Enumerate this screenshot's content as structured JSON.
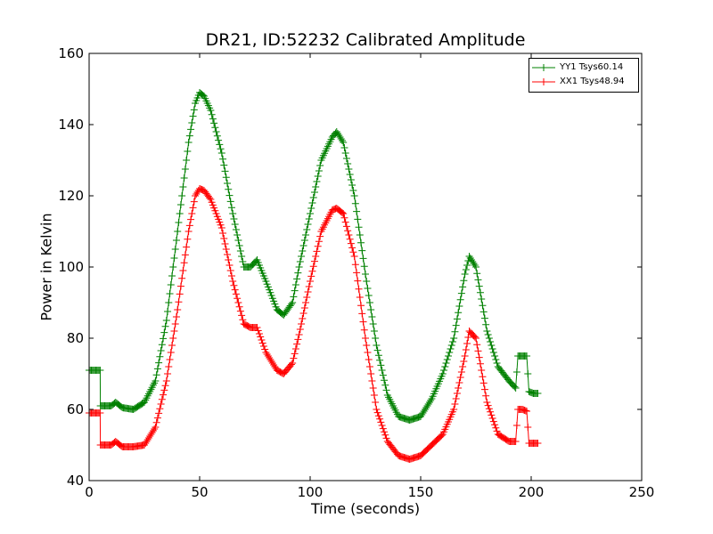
{
  "chart_data": {
    "type": "line",
    "title": "DR21, ID:52232 Calibrated Amplitude",
    "xlabel": "Time (seconds)",
    "ylabel": "Power in Kelvin",
    "xlim": [
      0,
      250
    ],
    "ylim": [
      40,
      160
    ],
    "xticks": [
      "0",
      "50",
      "100",
      "150",
      "200",
      "250"
    ],
    "yticks": [
      "40",
      "60",
      "80",
      "100",
      "120",
      "140",
      "160"
    ],
    "grid": false,
    "legend_position": "top-right",
    "marker": "+",
    "series": [
      {
        "name": "YY1 Tsys60.14",
        "color": "#008000",
        "x": [
          0,
          5,
          5.1,
          10,
          12,
          15,
          20,
          25,
          30,
          35,
          40,
          45,
          48,
          50,
          52,
          55,
          60,
          65,
          70,
          73,
          76,
          80,
          85,
          88,
          92,
          95,
          100,
          105,
          110,
          112,
          115,
          120,
          125,
          130,
          135,
          140,
          145,
          150,
          155,
          160,
          165,
          170,
          172,
          175,
          180,
          185,
          190,
          193,
          194,
          196,
          198,
          199,
          201,
          203
        ],
        "y": [
          71,
          71,
          61,
          61,
          62,
          60.5,
          60,
          62,
          68,
          85,
          110,
          135,
          146,
          149,
          148,
          144,
          132,
          115,
          100,
          100,
          102,
          96,
          88,
          86.5,
          90,
          100,
          115,
          130,
          136.5,
          138,
          135,
          120,
          98,
          78,
          64,
          58,
          57,
          58,
          63,
          70,
          80,
          98,
          103,
          100,
          82,
          72,
          68,
          66,
          75,
          75,
          75,
          65,
          64.5,
          64.5
        ]
      },
      {
        "name": "XX1 Tsys48.94",
        "color": "#ff0000",
        "x": [
          0,
          5,
          5.1,
          10,
          12,
          15,
          20,
          25,
          30,
          35,
          40,
          45,
          48,
          50,
          52,
          55,
          60,
          65,
          70,
          73,
          76,
          80,
          85,
          88,
          92,
          95,
          100,
          105,
          110,
          112,
          115,
          120,
          125,
          130,
          135,
          140,
          145,
          150,
          155,
          160,
          165,
          170,
          172,
          175,
          180,
          185,
          190,
          193,
          194,
          196,
          198,
          199,
          201,
          203
        ],
        "y": [
          59,
          59,
          50,
          50,
          51,
          49.5,
          49.5,
          50,
          55,
          68,
          88,
          110,
          120,
          122,
          121.5,
          119,
          111,
          96,
          84,
          83,
          83,
          76,
          71,
          70,
          73,
          81,
          96,
          110,
          116,
          116.5,
          115,
          103,
          80,
          60,
          51,
          47,
          46,
          47,
          50,
          53,
          60,
          75,
          82,
          80,
          62,
          53,
          51,
          51,
          60,
          60,
          59.5,
          50.5,
          50.5,
          50.5
        ]
      }
    ]
  }
}
